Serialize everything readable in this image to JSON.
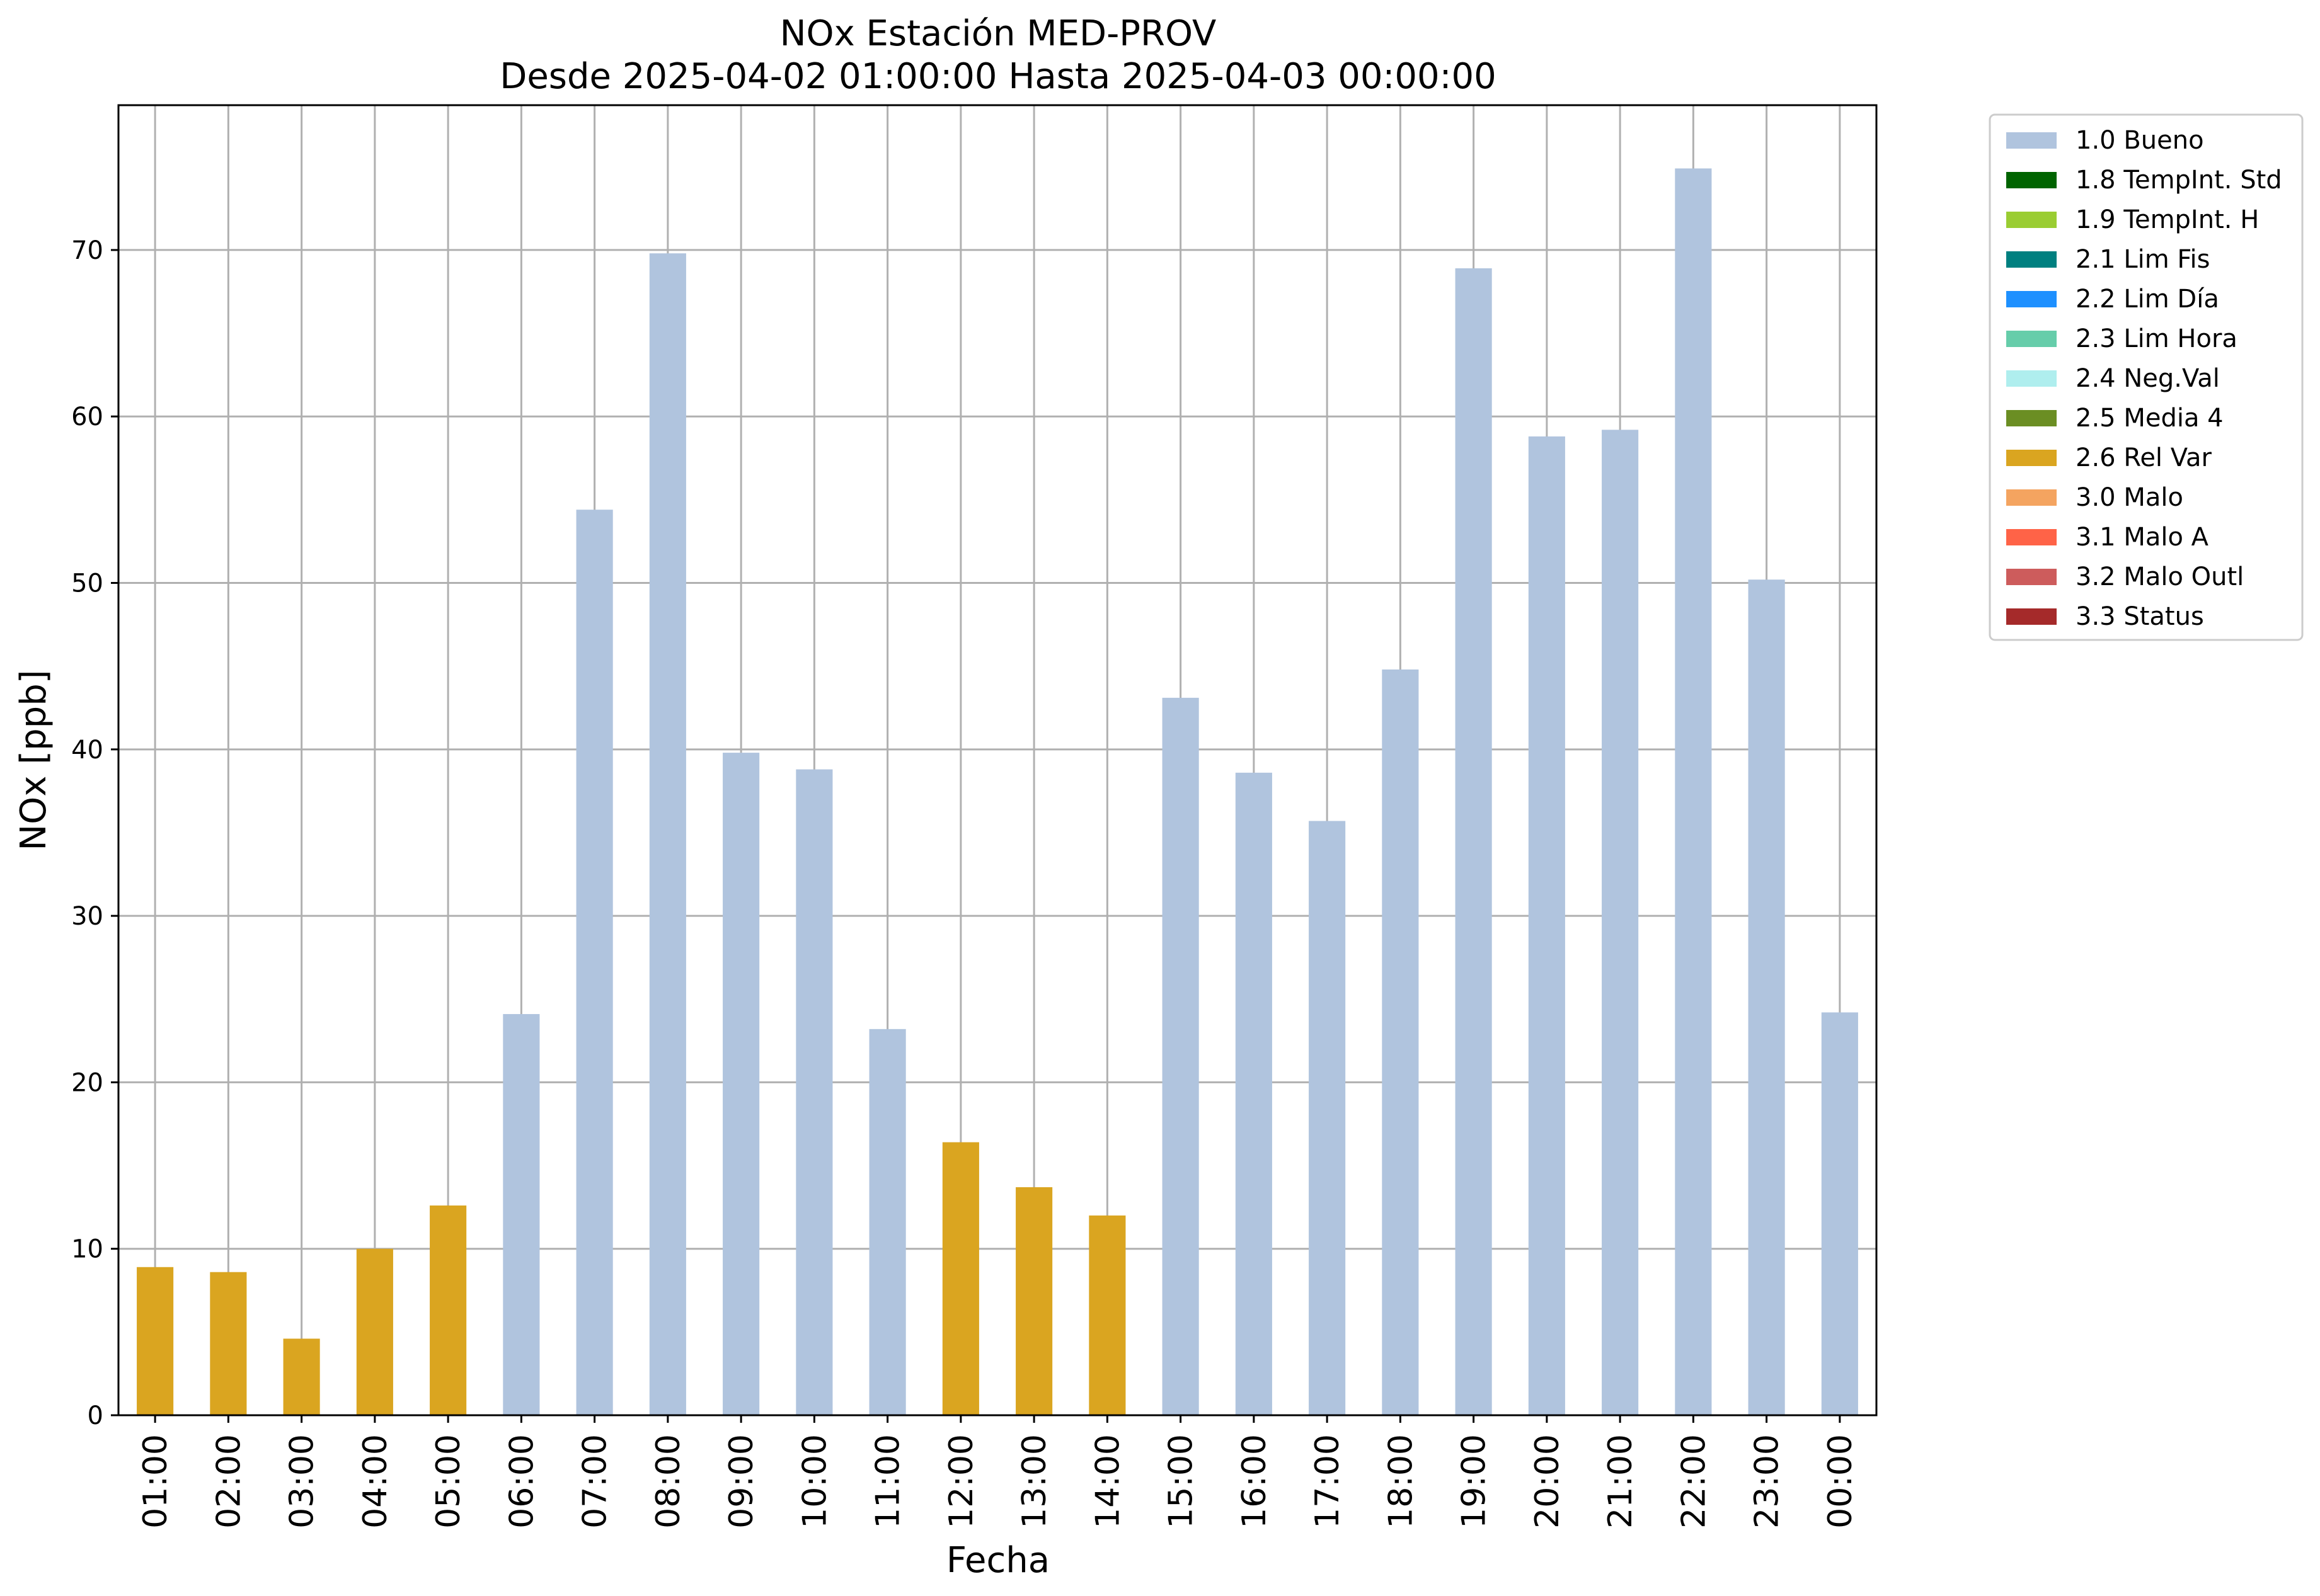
{
  "chart_data": {
    "type": "bar",
    "title": "NOx Estación MED-PROV",
    "subtitle": "Desde 2025-04-02 01:00:00 Hasta 2025-04-03 00:00:00",
    "xlabel": "Fecha",
    "ylabel": "NOx [ppb]",
    "ylim": [
      0,
      78.7
    ],
    "yticks": [
      0,
      10,
      20,
      30,
      40,
      50,
      60,
      70
    ],
    "grid": true,
    "legend_position": "outside-top-right",
    "categories": [
      "01:00",
      "02:00",
      "03:00",
      "04:00",
      "05:00",
      "06:00",
      "07:00",
      "08:00",
      "09:00",
      "10:00",
      "11:00",
      "12:00",
      "13:00",
      "14:00",
      "15:00",
      "16:00",
      "17:00",
      "18:00",
      "19:00",
      "20:00",
      "21:00",
      "22:00",
      "23:00",
      "00:00"
    ],
    "values": [
      8.9,
      8.6,
      4.6,
      10.0,
      12.6,
      24.1,
      54.4,
      69.8,
      39.8,
      38.8,
      23.2,
      16.4,
      13.7,
      12.0,
      43.1,
      38.6,
      35.7,
      44.8,
      68.9,
      58.8,
      59.2,
      74.9,
      50.2,
      24.2
    ],
    "flags": [
      "2.6 Rel Var",
      "2.6 Rel Var",
      "2.6 Rel Var",
      "2.6 Rel Var",
      "2.6 Rel Var",
      "1.0 Bueno",
      "1.0 Bueno",
      "1.0 Bueno",
      "1.0 Bueno",
      "1.0 Bueno",
      "1.0 Bueno",
      "2.6 Rel Var",
      "2.6 Rel Var",
      "2.6 Rel Var",
      "1.0 Bueno",
      "1.0 Bueno",
      "1.0 Bueno",
      "1.0 Bueno",
      "1.0 Bueno",
      "1.0 Bueno",
      "1.0 Bueno",
      "1.0 Bueno",
      "1.0 Bueno",
      "1.0 Bueno"
    ],
    "legend": [
      {
        "label": "1.0 Bueno",
        "color": "#b0c4de"
      },
      {
        "label": "1.8 TempInt. Std",
        "color": "#006400"
      },
      {
        "label": "1.9 TempInt. H",
        "color": "#9acd32"
      },
      {
        "label": "2.1 Lim Fis",
        "color": "#008080"
      },
      {
        "label": "2.2 Lim Día",
        "color": "#1e90ff"
      },
      {
        "label": "2.3 Lim Hora",
        "color": "#66cdaa"
      },
      {
        "label": "2.4 Neg.Val",
        "color": "#afeeee"
      },
      {
        "label": "2.5 Media 4",
        "color": "#6b8e23"
      },
      {
        "label": "2.6 Rel Var",
        "color": "#daa520"
      },
      {
        "label": "3.0 Malo",
        "color": "#f4a460"
      },
      {
        "label": "3.1 Malo A",
        "color": "#ff6347"
      },
      {
        "label": "3.2 Malo Outl",
        "color": "#cd5c5c"
      },
      {
        "label": "3.3 Status",
        "color": "#a52a2a"
      }
    ]
  }
}
